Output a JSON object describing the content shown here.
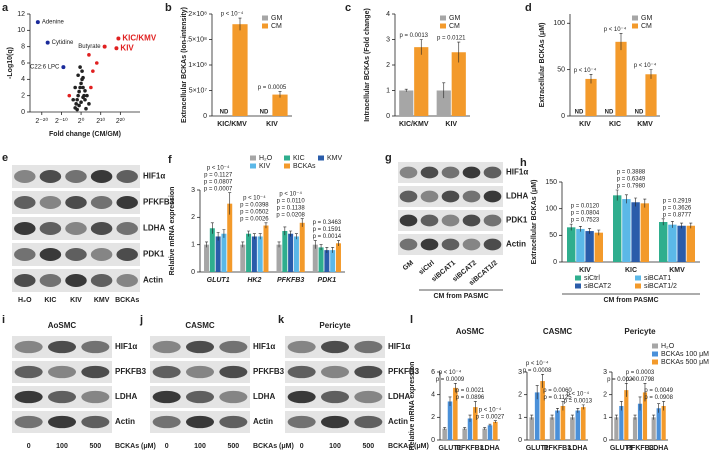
{
  "chart_data": [
    {
      "label": "a",
      "type": "scatter",
      "xlabel": "Fold change (CM/GM)",
      "ylabel": "-Log10(q)",
      "xlim": [
        -26,
        30
      ],
      "xticks": [
        {
          "value": -20,
          "label": "2⁻²⁰"
        },
        {
          "value": -10,
          "label": "2⁻¹⁰"
        },
        {
          "value": 0,
          "label": "2⁰"
        },
        {
          "value": 10,
          "label": "2¹⁰"
        },
        {
          "value": 20,
          "label": "2²⁰"
        }
      ],
      "ylim": [
        0,
        12
      ],
      "yticks": [
        0,
        2,
        4,
        6,
        8,
        10,
        12
      ],
      "series": [
        {
          "color": "#222222",
          "x": [
            -3,
            -2.5,
            -2,
            -1.5,
            -1,
            -0.5,
            0,
            0.5,
            1,
            1.5,
            2,
            -2,
            -1,
            0,
            1,
            2,
            -1.5,
            0.5,
            -0.5,
            1,
            3,
            -3,
            4,
            -4,
            2.5
          ],
          "values": [
            0.5,
            1,
            1.5,
            2,
            2.5,
            3,
            3.5,
            4,
            3,
            2,
            1.5,
            0.3,
            0.8,
            1.2,
            1.8,
            2.6,
            4.5,
            5,
            5.5,
            4.2,
            2,
            3,
            1,
            1.5,
            0.4
          ]
        },
        {
          "color": "#e02020",
          "x": [
            5,
            6,
            8,
            -6,
            4
          ],
          "values": [
            3,
            5,
            6,
            2,
            7
          ]
        }
      ],
      "annotations": [
        {
          "text": "Adenine",
          "x": -22,
          "y": 11,
          "color": "#1a2a9a",
          "label_color": "#222222"
        },
        {
          "text": "Cytidine",
          "x": -17,
          "y": 8.5,
          "color": "#1a2a9a",
          "label_color": "#222222"
        },
        {
          "text": "C22:6 LPC",
          "x": -9,
          "y": 5.5,
          "color": "#1a2a9a",
          "label_color": "#222222"
        },
        {
          "text": "Butyrate",
          "x": 12,
          "y": 8,
          "color": "#e02020",
          "label_color": "#222222"
        },
        {
          "text": "KIC/KMV",
          "x": 19,
          "y": 9,
          "color": "#e02020",
          "label_color": "#e02020"
        },
        {
          "text": "KIV",
          "x": 18,
          "y": 7.8,
          "color": "#e02020",
          "label_color": "#e02020"
        }
      ]
    },
    {
      "label": "b",
      "type": "bar",
      "ylabel": "Extracellular BCKAs (Ion intensity)",
      "categories": [
        "KIC/KMV",
        "KIV"
      ],
      "ylim": [
        0,
        200000000
      ],
      "yticks": [
        0,
        {
          "value": 50000000,
          "label": "5×10⁷"
        },
        {
          "value": 100000000,
          "label": "1×10⁸"
        },
        {
          "value": 150000000,
          "label": "1.5×10⁸"
        },
        {
          "value": 200000000,
          "label": "2×10⁸"
        }
      ],
      "series": [
        {
          "name": "GM",
          "color": "#a6a6a6",
          "values": [
            null,
            null
          ],
          "value_labels": [
            "ND",
            "ND"
          ]
        },
        {
          "name": "CM",
          "color": "#f39a2b",
          "values": [
            180000000,
            42000000
          ],
          "errors": [
            12000000,
            6000000
          ]
        }
      ],
      "pvalues": [
        [
          "p < 10⁻⁴"
        ],
        [
          "p = 0.0005"
        ]
      ]
    },
    {
      "label": "c",
      "type": "bar",
      "ylabel": "Intracellular BCKAs (Fold change)",
      "categories": [
        "KIC/KMV",
        "KIV"
      ],
      "ylim": [
        0,
        4
      ],
      "yticks": [
        0,
        1,
        2,
        3,
        4
      ],
      "series": [
        {
          "name": "GM",
          "color": "#a6a6a6",
          "values": [
            1,
            1
          ],
          "errors": [
            0.05,
            0.3
          ]
        },
        {
          "name": "CM",
          "color": "#f39a2b",
          "values": [
            2.7,
            2.5
          ],
          "errors": [
            0.3,
            0.4
          ]
        }
      ],
      "pvalues": [
        [
          "p = 0.0013"
        ],
        [
          "p = 0.0121"
        ]
      ]
    },
    {
      "label": "d",
      "type": "bar",
      "ylabel": "Extracellular BCKAs (μM)",
      "categories": [
        "KIV",
        "KIC",
        "KMV"
      ],
      "ylim": [
        0,
        110
      ],
      "yticks": [
        0,
        50,
        100
      ],
      "series": [
        {
          "name": "GM",
          "color": "#a6a6a6",
          "values": [
            null,
            null,
            null
          ],
          "value_labels": [
            "ND",
            "ND",
            "ND"
          ]
        },
        {
          "name": "CM",
          "color": "#f39a2b",
          "values": [
            40,
            80,
            45
          ],
          "errors": [
            5,
            9,
            5
          ]
        }
      ],
      "pvalues": [
        [
          "p < 10⁻⁴"
        ],
        [
          "p < 10⁻⁴"
        ],
        [
          "p < 10⁻⁴"
        ]
      ]
    },
    {
      "label": "f",
      "type": "bar",
      "ylabel": "Relative mRNA expression",
      "categories": [
        "GLUT1",
        "HK2",
        "PFKFB3",
        "PDK1"
      ],
      "ylim": [
        0,
        3
      ],
      "yticks": [
        0,
        1,
        2,
        3
      ],
      "series": [
        {
          "name": "H₂O",
          "color": "#a6a6a6",
          "values": [
            1,
            1,
            1,
            1
          ],
          "errors": [
            0.1,
            0.1,
            0.1,
            0.15
          ]
        },
        {
          "name": "KIC",
          "color": "#2fae8e",
          "values": [
            1.6,
            1.4,
            1.5,
            0.9
          ],
          "errors": [
            0.2,
            0.1,
            0.15,
            0.1
          ]
        },
        {
          "name": "KMV",
          "color": "#2a5caa",
          "values": [
            1.3,
            1.3,
            1.4,
            0.8
          ],
          "errors": [
            0.15,
            0.1,
            0.1,
            0.1
          ]
        },
        {
          "name": "KIV",
          "color": "#5bb8e8",
          "values": [
            1.4,
            1.3,
            1.3,
            0.8
          ],
          "errors": [
            0.15,
            0.1,
            0.1,
            0.1
          ]
        },
        {
          "name": "BCKAs",
          "color": "#f39a2b",
          "values": [
            2.5,
            1.7,
            1.8,
            1.05
          ],
          "errors": [
            0.4,
            0.1,
            0.15,
            0.1
          ]
        }
      ],
      "pvalues": [
        [
          "p < 10⁻⁴",
          "p = 0.1127",
          "p = 0.0807",
          "p = 0.0007"
        ],
        [
          "p < 10⁻⁴",
          "p = 0.0398",
          "p = 0.0502",
          "p = 0.0026"
        ],
        [
          "p < 10⁻⁴",
          "p = 0.0110",
          "p = 0.1138",
          "p = 0.0208"
        ],
        [
          "p = 0.3463",
          "p = 0.1591",
          "p = 0.0014"
        ]
      ]
    },
    {
      "label": "h",
      "type": "bar",
      "ylabel": "Extracellular BCKAs (μM)",
      "categories": [
        "KIV",
        "KIC",
        "KMV"
      ],
      "caption": "CM from PASMC",
      "ylim": [
        0,
        150
      ],
      "yticks": [
        0,
        50,
        100,
        150
      ],
      "series": [
        {
          "name": "siCtrl",
          "color": "#2fae8e",
          "values": [
            65,
            125,
            75
          ],
          "errors": [
            6,
            10,
            6
          ]
        },
        {
          "name": "siBCAT1",
          "color": "#5bb8e8",
          "values": [
            62,
            118,
            70
          ],
          "errors": [
            5,
            8,
            6
          ]
        },
        {
          "name": "siBCAT2",
          "color": "#2a5caa",
          "values": [
            58,
            112,
            68
          ],
          "errors": [
            5,
            8,
            5
          ]
        },
        {
          "name": "siBCAT1/2",
          "color": "#f39a2b",
          "values": [
            55,
            110,
            68
          ],
          "errors": [
            5,
            8,
            5
          ]
        }
      ],
      "pvalues": [
        [
          "p = 0.0120",
          "p = 0.0804",
          "p = 0.7523"
        ],
        [
          "p = 0.3888",
          "p = 0.6349",
          "p = 0.7980"
        ],
        [
          "p = 0.2919",
          "p = 0.3626",
          "p = 0.8777"
        ]
      ]
    },
    {
      "label": "l",
      "type": "bar",
      "title": "AoSMC",
      "ylabel": "Relative mRNA expression",
      "categories": [
        "GLUT1",
        "PFKFB3",
        "LDHA"
      ],
      "ylim": [
        0,
        6
      ],
      "yticks": [
        0,
        2,
        4,
        6
      ],
      "series": [
        {
          "name": "H₂O",
          "color": "#a6a6a6",
          "values": [
            1,
            1,
            1
          ],
          "errors": [
            0.1,
            0.1,
            0.1
          ]
        },
        {
          "name": "BCKAs 100 μM",
          "color": "#4a90d9",
          "values": [
            3.4,
            1.9,
            1.3
          ],
          "errors": [
            0.4,
            0.3,
            0.1
          ]
        },
        {
          "name": "BCKAs 500 μM",
          "color": "#f39a2b",
          "values": [
            4.6,
            2.9,
            1.6
          ],
          "errors": [
            0.4,
            0.5,
            0.1
          ]
        }
      ],
      "pvalues": [
        [
          "p < 10⁻⁴",
          "p = 0.0009"
        ],
        [
          "p = 0.0021",
          "p = 0.0896"
        ],
        [
          "p < 10⁻⁴",
          "p = 0.0027"
        ]
      ]
    },
    {
      "type": "bar",
      "title": "CASMC",
      "categories": [
        "GLUT1",
        "PFKFB3",
        "LDHA"
      ],
      "ylim": [
        0,
        3
      ],
      "yticks": [
        0,
        1,
        2,
        3
      ],
      "series": [
        {
          "color": "#a6a6a6",
          "values": [
            1,
            1,
            1
          ],
          "errors": [
            0.1,
            0.1,
            0.1
          ]
        },
        {
          "color": "#4a90d9",
          "values": [
            2.1,
            1.3,
            1.3
          ],
          "errors": [
            0.3,
            0.1,
            0.1
          ]
        },
        {
          "color": "#f39a2b",
          "values": [
            2.6,
            1.5,
            1.45
          ],
          "errors": [
            0.3,
            0.2,
            0.1
          ]
        }
      ],
      "pvalues": [
        [
          "p < 10⁻⁴",
          "p = 0.0008"
        ],
        [
          "p = 0.0060",
          "p = 0.1125"
        ],
        [
          "p < 10⁻⁴",
          "p = 0.0013"
        ]
      ]
    },
    {
      "type": "bar",
      "title": "Pericyte",
      "categories": [
        "GLUT1",
        "PFKFB3",
        "LDHA"
      ],
      "ylim": [
        0,
        3
      ],
      "yticks": [
        0,
        1,
        2,
        3
      ],
      "series": [
        {
          "color": "#a6a6a6",
          "values": [
            1,
            1,
            1
          ],
          "errors": [
            0.1,
            0.1,
            0.1
          ]
        },
        {
          "color": "#4a90d9",
          "values": [
            1.5,
            1.6,
            1.4
          ],
          "errors": [
            0.2,
            0.3,
            0.2
          ]
        },
        {
          "color": "#f39a2b",
          "values": [
            2.2,
            2.1,
            1.5
          ],
          "errors": [
            0.3,
            0.4,
            0.2
          ]
        }
      ],
      "pvalues": [
        [
          "p = 0.0020"
        ],
        [
          "p = 0.0003",
          "p = 0.0798"
        ],
        [
          "p = 0.0049",
          "p = 0.0908"
        ]
      ]
    }
  ],
  "legend_l": [
    "H₂O",
    "BCKAs 100 μM",
    "BCKAs 500 μM"
  ],
  "blots": [
    {
      "label": "e",
      "bands": [
        "HIF1α",
        "PFKFB3",
        "LDHA",
        "PDK1",
        "Actin"
      ],
      "lanes": [
        "H₂O",
        "KIC",
        "KIV",
        "KMV",
        "BCKAs"
      ]
    },
    {
      "label": "g",
      "bands": [
        "HIF1α",
        "LDHA",
        "PDK1",
        "Actin"
      ],
      "lanes": [
        "GM",
        "siCtrl",
        "siBCAT1",
        "siBCAT2",
        "siBCAT1/2"
      ],
      "caption": "CM from PASMC"
    },
    {
      "label": "i",
      "title": "AoSMC",
      "bands": [
        "HIF1α",
        "PFKFB3",
        "LDHA",
        "Actin"
      ],
      "lanes": [
        "0",
        "100",
        "500"
      ],
      "lane_axis": "BCKAs (μM)"
    },
    {
      "label": "j",
      "title": "CASMC",
      "bands": [
        "HIF1α",
        "PFKFB3",
        "LDHA",
        "Actin"
      ],
      "lanes": [
        "0",
        "100",
        "500"
      ],
      "lane_axis": "BCKAs (μM)"
    },
    {
      "label": "k",
      "title": "Pericyte",
      "bands": [
        "HIF1α",
        "PFKFB3",
        "LDHA",
        "Actin"
      ],
      "lanes": [
        "0",
        "100",
        "500"
      ],
      "lane_axis": "BCKAs (μM)"
    }
  ]
}
